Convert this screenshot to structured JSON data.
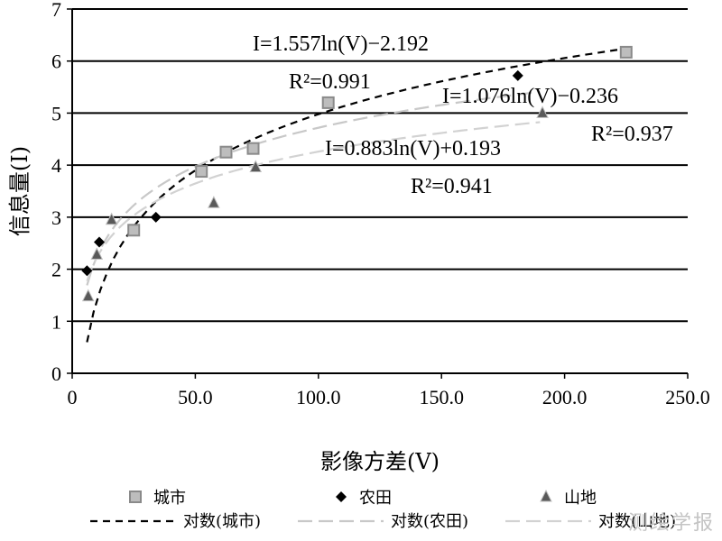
{
  "chart_data": {
    "type": "scatter",
    "xlabel": "影像方差(V)",
    "ylabel": "信息量(I)",
    "xlim": [
      0,
      250
    ],
    "ylim": [
      0,
      7
    ],
    "xticks": [
      "0",
      "50.0",
      "100.0",
      "150.0",
      "200.0",
      "250.0"
    ],
    "yticks": [
      "0",
      "1",
      "2",
      "3",
      "4",
      "5",
      "6",
      "7"
    ],
    "grid": "horizontal",
    "series": [
      {
        "name": "城市",
        "marker": "square",
        "color": "#a6a6a6",
        "points": [
          [
            25,
            2.75
          ],
          [
            52.5,
            3.88
          ],
          [
            62.5,
            4.25
          ],
          [
            73.5,
            4.32
          ],
          [
            104,
            5.2
          ],
          [
            225,
            6.17
          ]
        ]
      },
      {
        "name": "农田",
        "marker": "diamond",
        "color": "#000000",
        "points": [
          [
            6,
            1.97
          ],
          [
            11,
            2.52
          ],
          [
            34,
            3.0
          ],
          [
            181,
            5.72
          ]
        ]
      },
      {
        "name": "山地",
        "marker": "triangle",
        "color": "#595959",
        "points": [
          [
            6.5,
            1.48
          ],
          [
            10,
            2.28
          ],
          [
            16,
            2.95
          ],
          [
            57.5,
            3.27
          ],
          [
            74.5,
            3.96
          ],
          [
            191,
            5.0
          ]
        ]
      }
    ],
    "fits": [
      {
        "name": "对数(城市)",
        "a": 1.557,
        "b": -2.192,
        "style": "dash",
        "color": "#000000",
        "range": [
          6,
          225
        ],
        "equation": "I=1.557ln(V)−2.192",
        "r2": "R²=0.991"
      },
      {
        "name": "对数(农田)",
        "a": 1.076,
        "b": -0.236,
        "style": "longdash",
        "color": "#c8c8c8",
        "range": [
          6,
          190
        ],
        "equation": "I=1.076ln(V)−0.236",
        "r2": "R²=0.937"
      },
      {
        "name": "对数(山地)",
        "a": 0.883,
        "b": 0.193,
        "style": "longdash",
        "color": "#d2d2d2",
        "range": [
          6,
          190
        ],
        "equation": "I=0.883ln(V)+0.193",
        "r2": "R²=0.941"
      }
    ],
    "legend_placement": "bottom"
  },
  "watermark": "测绘学报"
}
